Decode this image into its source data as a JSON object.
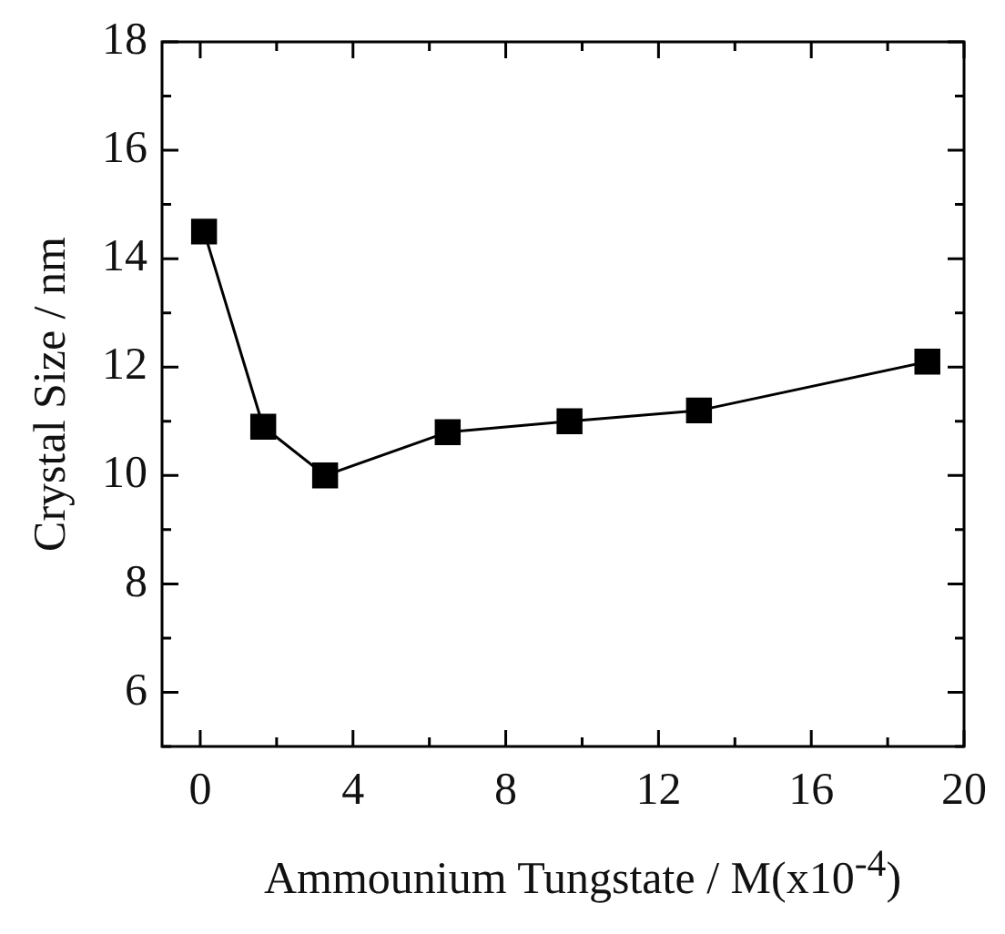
{
  "chart_data": {
    "type": "line",
    "xlabel": "Ammounium Tungstate / M(x10$^{-4}$)",
    "ylabel": "Crystal Size / nm",
    "x": [
      0.1,
      1.65,
      3.27,
      6.48,
      9.67,
      13.06,
      19.04
    ],
    "series": [
      {
        "color": "#000000",
        "values": [
          14.5,
          10.9,
          10.0,
          10.8,
          11.0,
          11.2,
          12.1
        ]
      }
    ],
    "marker": "square",
    "line_style": "solid",
    "grid": false,
    "legend": false,
    "xlim": [
      -1,
      20
    ],
    "xticks": [
      0,
      {
        "value": 2,
        "label": null
      },
      4,
      {
        "value": 6,
        "label": null
      },
      8,
      {
        "value": 10,
        "label": null
      },
      12,
      {
        "value": 14,
        "label": null
      },
      16,
      {
        "value": 18,
        "label": null
      },
      20
    ],
    "ylim": [
      5,
      18
    ],
    "yticks": [
      {
        "value": 5,
        "label": null
      },
      6,
      {
        "value": 7,
        "label": null
      },
      8,
      {
        "value": 9,
        "label": null
      },
      10,
      {
        "value": 11,
        "label": null
      },
      12,
      {
        "value": 13,
        "label": null
      },
      14,
      {
        "value": 15,
        "label": null
      },
      16,
      {
        "value": 17,
        "label": null
      },
      18
    ]
  }
}
